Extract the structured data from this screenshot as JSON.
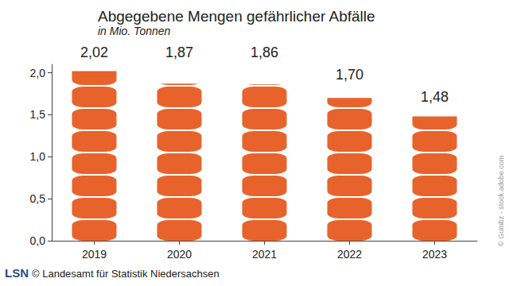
{
  "chart_data": {
    "type": "bar",
    "title": "Abgegebene Mengen gefährlicher Abfälle",
    "subtitle": "in Mio. Tonnen",
    "categories": [
      "2019",
      "2020",
      "2021",
      "2022",
      "2023"
    ],
    "values": [
      2.02,
      1.87,
      1.86,
      1.7,
      1.48
    ],
    "value_labels": [
      "2,02",
      "1,87",
      "1,86",
      "1,70",
      "1,48"
    ],
    "color": "#e8632b",
    "ylim": [
      0,
      2.1
    ],
    "yticks": [
      {
        "value": 0,
        "label": "0,0"
      },
      {
        "value": 0.5,
        "label": "0,5"
      },
      {
        "value": 1,
        "label": "1,0"
      },
      {
        "value": 1.5,
        "label": "1,5"
      },
      {
        "value": 2,
        "label": "2,0"
      }
    ],
    "grid": false,
    "data_labels": true,
    "annotations": [
      "LSN",
      "© Landesamt für Statistik Niedersachsen",
      "© Gumbz - stock.adobe.com"
    ]
  }
}
